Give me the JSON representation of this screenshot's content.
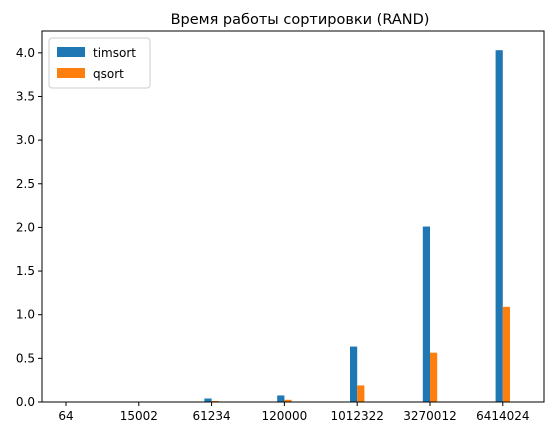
{
  "chart_data": {
    "type": "bar",
    "title": "Время работы сортировки (RAND)",
    "xlabel": "",
    "ylabel": "",
    "categories": [
      "64",
      "15002",
      "61234",
      "120000",
      "1012322",
      "3270012",
      "6414024"
    ],
    "series": [
      {
        "name": "timsort",
        "color": "#1f77b4",
        "values": [
          0.0,
          0.001,
          0.04,
          0.075,
          0.635,
          2.01,
          4.03
        ]
      },
      {
        "name": "qsort",
        "color": "#ff7f0e",
        "values": [
          0.0,
          0.001,
          0.012,
          0.025,
          0.19,
          0.565,
          1.09
        ]
      }
    ],
    "ylim": [
      0,
      4.25
    ],
    "yticks": [
      "0.0",
      "0.5",
      "1.0",
      "1.5",
      "2.0",
      "2.5",
      "3.0",
      "3.5",
      "4.0"
    ],
    "grid": false,
    "legend_position": "top-left"
  }
}
